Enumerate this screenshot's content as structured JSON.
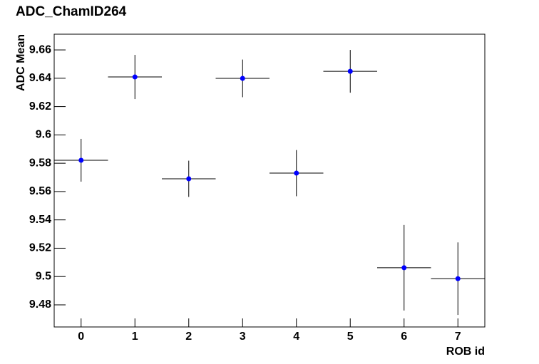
{
  "chart_data": {
    "type": "errorbar",
    "title": "ADC_ChamID264",
    "x_label": "ROB id",
    "y_label": "ADC Mean",
    "x": [
      0,
      1,
      2,
      3,
      4,
      5,
      6,
      7
    ],
    "values": [
      9.5821,
      9.6409,
      9.569,
      9.6399,
      9.573,
      9.6449,
      9.5062,
      9.4985
    ],
    "errors": [
      0.0151,
      0.0156,
      0.0128,
      0.0133,
      0.0163,
      0.0151,
      0.0302,
      0.0256
    ],
    "x_errors": [
      0.5,
      0.5,
      0.5,
      0.5,
      0.5,
      0.5,
      0.5,
      0.5
    ],
    "color": "#0000ff",
    "xlim": [
      -0.5,
      7.5
    ],
    "xticks": [
      0,
      1,
      2,
      3,
      4,
      5,
      6,
      7
    ],
    "ylim": [
      9.4644,
      9.6711
    ],
    "yticks": [
      9.48,
      9.5,
      9.52,
      9.54,
      9.56,
      9.58,
      9.6,
      9.62,
      9.64,
      9.66
    ]
  }
}
